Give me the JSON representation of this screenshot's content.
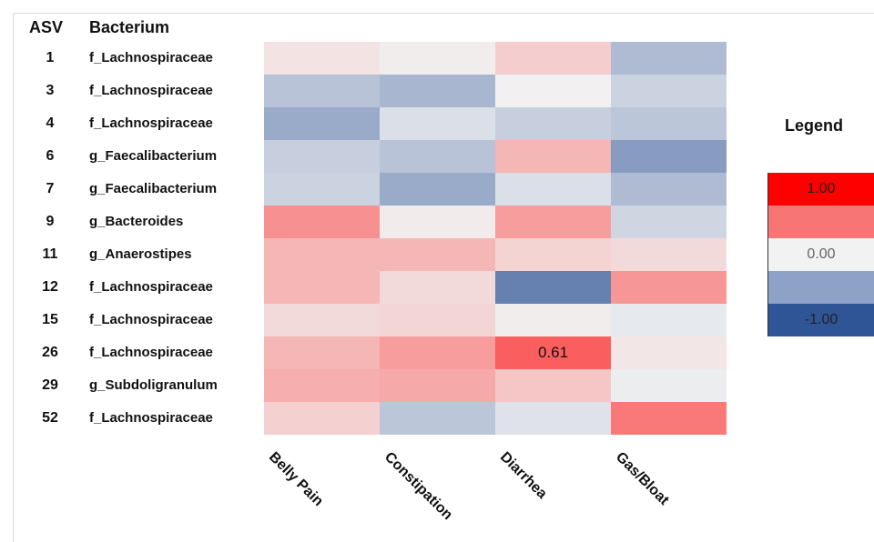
{
  "headers": {
    "asv": "ASV",
    "bacterium": "Bacterium"
  },
  "legend": {
    "title": "Legend",
    "entries": [
      {
        "label": "1.00",
        "color": "#ff0000",
        "text_color": "#222222"
      },
      {
        "label": "",
        "color": "#f87575",
        "text_color": "#222222"
      },
      {
        "label": "0.00",
        "color": "#f2f2f2",
        "text_color": "#666666"
      },
      {
        "label": "",
        "color": "#8ea1c6",
        "text_color": "#222222"
      },
      {
        "label": "-1.00",
        "color": "#2f5597",
        "text_color": "#222222"
      }
    ]
  },
  "chart_data": {
    "type": "heatmap",
    "title": "",
    "x_categories": [
      "Belly Pain",
      "Constipation",
      "Diarrhea",
      "Gas/Bloat"
    ],
    "rows": [
      {
        "asv": "1",
        "bacterium": "f_Lachnospiraceae",
        "values": [
          0.06,
          0.02,
          0.15,
          -0.35
        ]
      },
      {
        "asv": "3",
        "bacterium": "f_Lachnospiraceae",
        "values": [
          -0.3,
          -0.38,
          0.01,
          -0.2
        ]
      },
      {
        "asv": "4",
        "bacterium": "f_Lachnospiraceae",
        "values": [
          -0.45,
          -0.12,
          -0.22,
          -0.28
        ]
      },
      {
        "asv": "6",
        "bacterium": "g_Faecalibacterium",
        "values": [
          -0.22,
          -0.3,
          0.25,
          -0.55
        ]
      },
      {
        "asv": "7",
        "bacterium": "g_Faecalibacterium",
        "values": [
          -0.2,
          -0.45,
          -0.12,
          -0.35
        ]
      },
      {
        "asv": "9",
        "bacterium": "g_Bacteroides",
        "values": [
          0.4,
          0.03,
          0.35,
          -0.18
        ]
      },
      {
        "asv": "11",
        "bacterium": "g_Anaerostipes",
        "values": [
          0.25,
          0.25,
          0.13,
          0.1
        ]
      },
      {
        "asv": "12",
        "bacterium": "f_Lachnospiraceae",
        "values": [
          0.25,
          0.1,
          -0.72,
          0.38
        ]
      },
      {
        "asv": "15",
        "bacterium": "f_Lachnospiraceae",
        "values": [
          0.1,
          0.12,
          0.02,
          -0.06
        ]
      },
      {
        "asv": "26",
        "bacterium": "f_Lachnospiraceae",
        "values": [
          0.25,
          0.35,
          0.61,
          0.05
        ]
      },
      {
        "asv": "29",
        "bacterium": "g_Subdoligranulum",
        "values": [
          0.28,
          0.3,
          0.18,
          -0.03
        ]
      },
      {
        "asv": "52",
        "bacterium": "f_Lachnospiraceae",
        "values": [
          0.14,
          -0.28,
          -0.1,
          0.5
        ]
      }
    ],
    "labeled_cells": [
      {
        "row": 9,
        "col": 2,
        "text": "0.61"
      }
    ],
    "color_scale": {
      "min": -1.0,
      "mid": 0.0,
      "max": 1.0,
      "min_color": "#2f5597",
      "mid_color": "#f2f2f2",
      "max_color": "#ff0000"
    }
  }
}
